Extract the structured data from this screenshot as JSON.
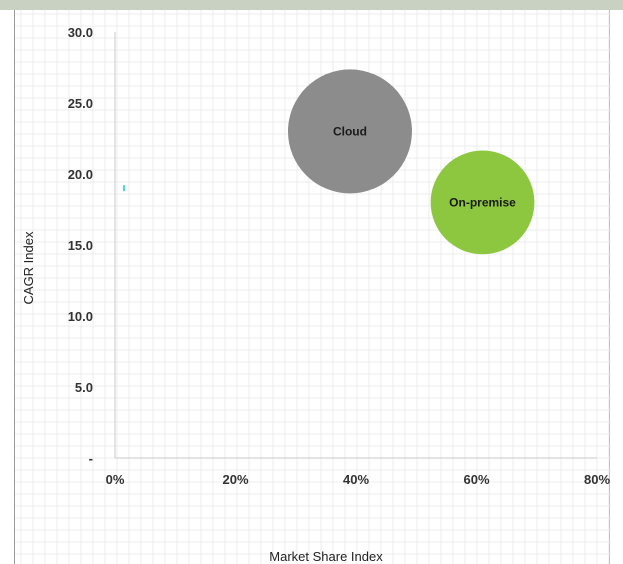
{
  "chart_data": {
    "type": "bubble",
    "xlabel": "Market Share Index",
    "ylabel": "CAGR Index",
    "x_ticks": [
      "0%",
      "20%",
      "40%",
      "60%",
      "80%"
    ],
    "y_ticks": [
      "-",
      "5.0",
      "10.0",
      "15.0",
      "20.0",
      "25.0",
      "30.0"
    ],
    "xlim": [
      0,
      80
    ],
    "ylim": [
      0,
      30
    ],
    "grid": true,
    "legend": "none",
    "series": [
      {
        "name": "Cloud",
        "x": 39,
        "y": 23,
        "size": 100,
        "color": "#8c8c8c"
      },
      {
        "name": "On-premise",
        "x": 61,
        "y": 18,
        "size": 70,
        "color": "#8dc63f"
      }
    ],
    "marker": {
      "x": 1.5,
      "y": 19,
      "color": "#4fd1e6"
    }
  }
}
